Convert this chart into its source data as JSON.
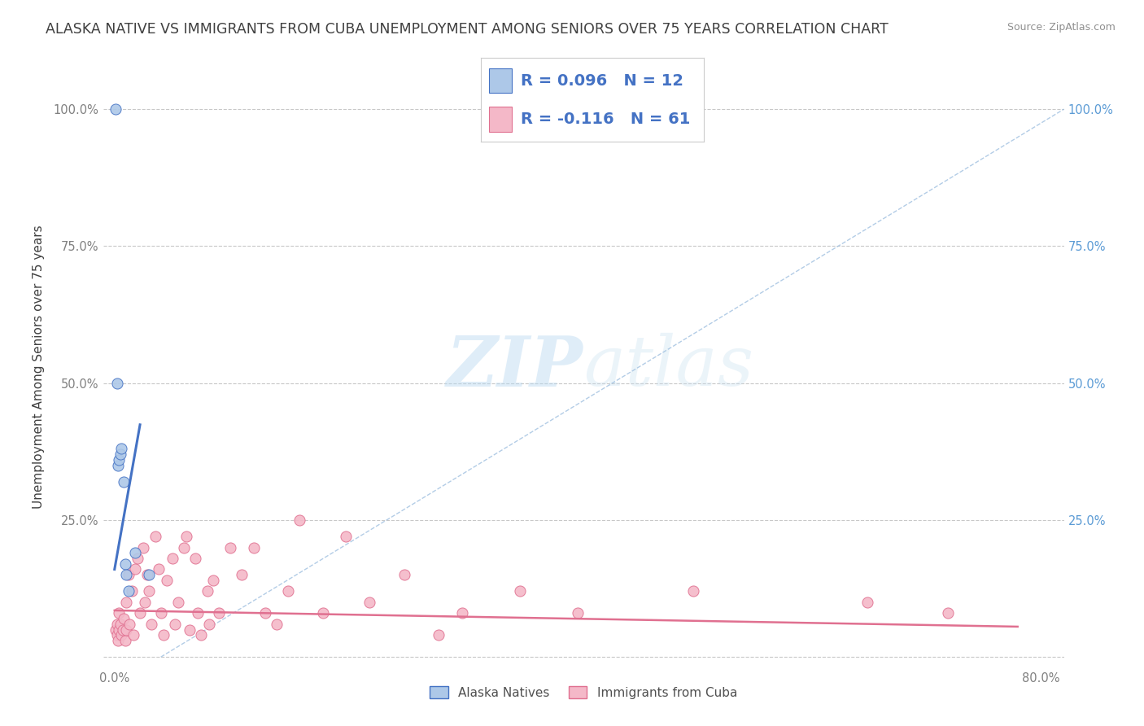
{
  "title": "ALASKA NATIVE VS IMMIGRANTS FROM CUBA UNEMPLOYMENT AMONG SENIORS OVER 75 YEARS CORRELATION CHART",
  "source": "Source: ZipAtlas.com",
  "ylabel": "Unemployment Among Seniors over 75 years",
  "xlabel": "",
  "watermark_zip": "ZIP",
  "watermark_atlas": "atlas",
  "xlim": [
    -0.01,
    0.82
  ],
  "ylim": [
    -0.02,
    1.08
  ],
  "xticks": [
    0.0,
    0.2,
    0.4,
    0.6,
    0.8
  ],
  "yticks": [
    0.0,
    0.25,
    0.5,
    0.75,
    1.0
  ],
  "xtick_labels": [
    "0.0%",
    "",
    "",
    "",
    "80.0%"
  ],
  "ytick_labels": [
    "",
    "25.0%",
    "50.0%",
    "75.0%",
    "100.0%"
  ],
  "alaska_R": 0.096,
  "alaska_N": 12,
  "cuba_R": -0.116,
  "cuba_N": 61,
  "alaska_color": "#adc8e8",
  "alaska_line_color": "#4472c4",
  "alaska_edge_color": "#4472c4",
  "cuba_color": "#f4b8c8",
  "cuba_line_color": "#e07090",
  "cuba_edge_color": "#e07090",
  "alaska_scatter_x": [
    0.001,
    0.002,
    0.003,
    0.004,
    0.005,
    0.006,
    0.008,
    0.009,
    0.01,
    0.012,
    0.018,
    0.03
  ],
  "alaska_scatter_y": [
    1.0,
    0.5,
    0.35,
    0.36,
    0.37,
    0.38,
    0.32,
    0.17,
    0.15,
    0.12,
    0.19,
    0.15
  ],
  "cuba_scatter_x": [
    0.001,
    0.002,
    0.002,
    0.003,
    0.004,
    0.004,
    0.005,
    0.006,
    0.007,
    0.008,
    0.009,
    0.01,
    0.01,
    0.012,
    0.013,
    0.015,
    0.016,
    0.018,
    0.02,
    0.022,
    0.025,
    0.026,
    0.028,
    0.03,
    0.032,
    0.035,
    0.038,
    0.04,
    0.042,
    0.045,
    0.05,
    0.052,
    0.055,
    0.06,
    0.062,
    0.065,
    0.07,
    0.072,
    0.075,
    0.08,
    0.082,
    0.085,
    0.09,
    0.1,
    0.11,
    0.12,
    0.13,
    0.14,
    0.15,
    0.16,
    0.18,
    0.2,
    0.22,
    0.25,
    0.28,
    0.3,
    0.35,
    0.4,
    0.5,
    0.65,
    0.72
  ],
  "cuba_scatter_y": [
    0.05,
    0.04,
    0.06,
    0.03,
    0.05,
    0.08,
    0.06,
    0.04,
    0.05,
    0.07,
    0.03,
    0.1,
    0.05,
    0.15,
    0.06,
    0.12,
    0.04,
    0.16,
    0.18,
    0.08,
    0.2,
    0.1,
    0.15,
    0.12,
    0.06,
    0.22,
    0.16,
    0.08,
    0.04,
    0.14,
    0.18,
    0.06,
    0.1,
    0.2,
    0.22,
    0.05,
    0.18,
    0.08,
    0.04,
    0.12,
    0.06,
    0.14,
    0.08,
    0.2,
    0.15,
    0.2,
    0.08,
    0.06,
    0.12,
    0.25,
    0.08,
    0.22,
    0.1,
    0.15,
    0.04,
    0.08,
    0.12,
    0.08,
    0.12,
    0.1,
    0.08
  ],
  "background_color": "#ffffff",
  "grid_color": "#c8c8c8",
  "title_color": "#404040",
  "source_color": "#909090",
  "ylabel_color": "#404040",
  "ytick_right_color": "#5b9bd5",
  "marker_size": 9,
  "title_fontsize": 12.5,
  "label_fontsize": 11,
  "tick_fontsize": 10.5,
  "legend_fontsize": 14
}
